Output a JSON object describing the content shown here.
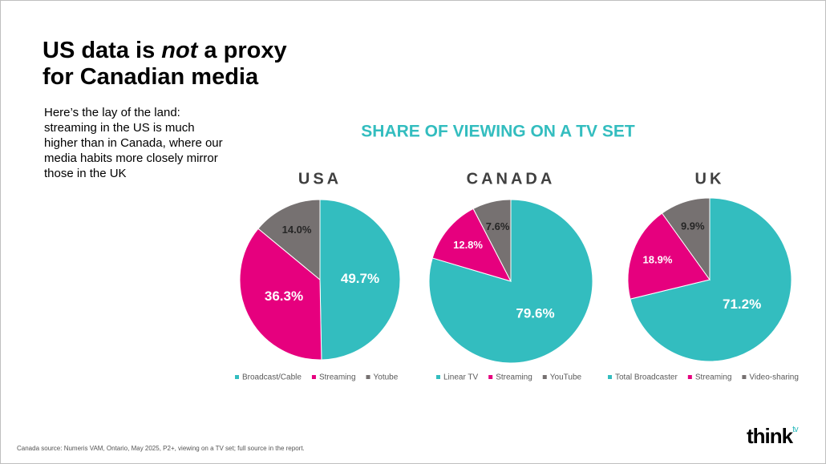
{
  "title": {
    "before": "US data is ",
    "emphasis": "not",
    "after": " a proxy",
    "line2": "for Canadian media"
  },
  "body": "Here’s the lay of the land: streaming in the US is much higher than in Canada, where our media habits more closely mirror those in the UK",
  "section_title": "SHARE OF VIEWING ON A TV SET",
  "footnote": "Canada source: Numeris VAM, Ontario, May 2025, P2+, viewing on a TV set; full source in the report.",
  "logo": {
    "text": "think",
    "superscript": "tv"
  },
  "chart_data": [
    {
      "type": "pie",
      "title": "USA",
      "categories": [
        "Broadcast/Cable",
        "Streaming",
        "Yotube"
      ],
      "values": [
        49.7,
        36.3,
        14.0
      ],
      "value_labels": [
        "49.7%",
        "36.3%",
        "14.0%"
      ],
      "colors": [
        "#33bdbf",
        "#e6007e",
        "#767171"
      ]
    },
    {
      "type": "pie",
      "title": "CANADA",
      "categories": [
        "Linear TV",
        "Streaming",
        "YouTube"
      ],
      "values": [
        79.6,
        12.8,
        7.6
      ],
      "value_labels": [
        "79.6%",
        "12.8%",
        "7.6%"
      ],
      "colors": [
        "#33bdbf",
        "#e6007e",
        "#767171"
      ]
    },
    {
      "type": "pie",
      "title": "UK",
      "categories": [
        "Total Broadcaster",
        "Streaming",
        "Video-sharing"
      ],
      "values": [
        71.2,
        18.9,
        9.9
      ],
      "value_labels": [
        "71.2%",
        "18.9%",
        "9.9%"
      ],
      "colors": [
        "#33bdbf",
        "#e6007e",
        "#767171"
      ]
    }
  ]
}
